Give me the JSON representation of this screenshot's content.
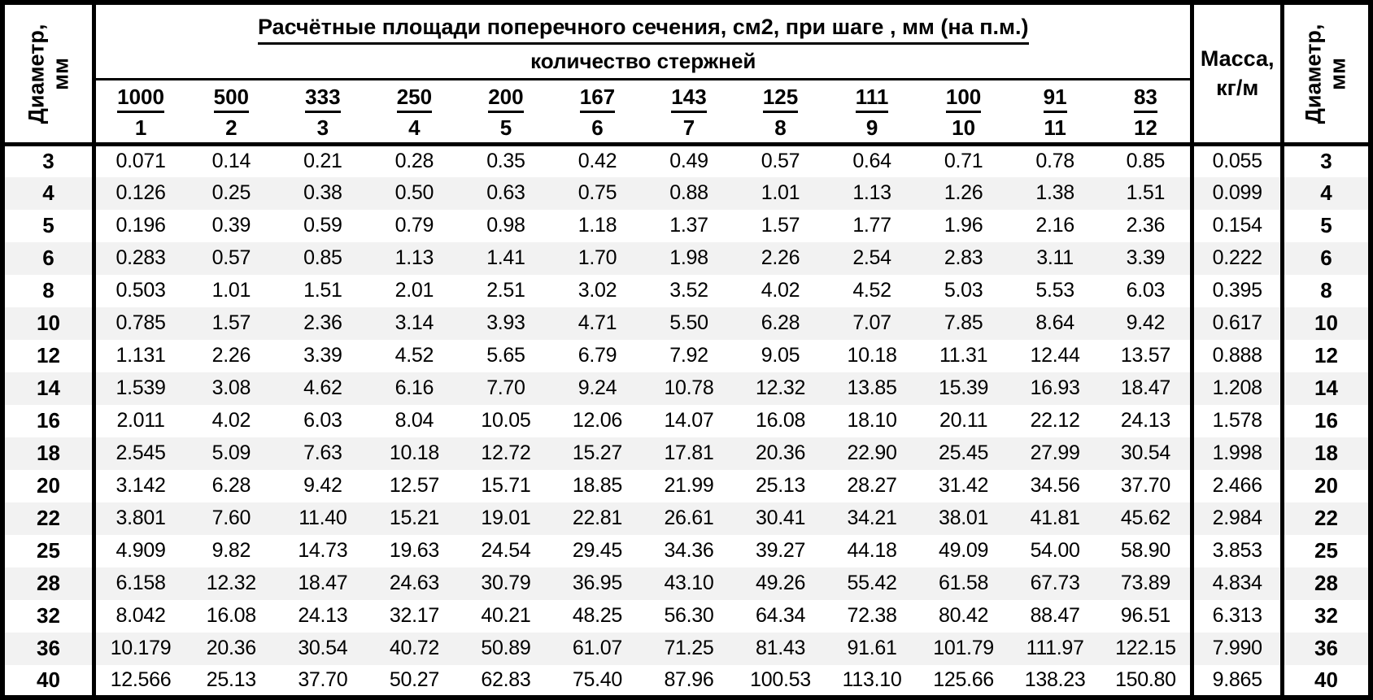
{
  "table": {
    "title": "Расчётные площади поперечного сечения, см2, при шаге , мм (на п.м.)",
    "subtitle": "количество стержней",
    "diameter_header": {
      "line1": "Диаметр,",
      "line2": "мм"
    },
    "mass_header": {
      "line1": "Масса,",
      "line2": "кг/м"
    },
    "spacing_values": [
      "1000",
      "500",
      "333",
      "250",
      "200",
      "167",
      "143",
      "125",
      "111",
      "100",
      "91",
      "83"
    ],
    "bar_counts": [
      "1",
      "2",
      "3",
      "4",
      "5",
      "6",
      "7",
      "8",
      "9",
      "10",
      "11",
      "12"
    ],
    "rows": [
      {
        "diameter": "3",
        "areas": [
          "0.071",
          "0.14",
          "0.21",
          "0.28",
          "0.35",
          "0.42",
          "0.49",
          "0.57",
          "0.64",
          "0.71",
          "0.78",
          "0.85"
        ],
        "mass": "0.055"
      },
      {
        "diameter": "4",
        "areas": [
          "0.126",
          "0.25",
          "0.38",
          "0.50",
          "0.63",
          "0.75",
          "0.88",
          "1.01",
          "1.13",
          "1.26",
          "1.38",
          "1.51"
        ],
        "mass": "0.099"
      },
      {
        "diameter": "5",
        "areas": [
          "0.196",
          "0.39",
          "0.59",
          "0.79",
          "0.98",
          "1.18",
          "1.37",
          "1.57",
          "1.77",
          "1.96",
          "2.16",
          "2.36"
        ],
        "mass": "0.154"
      },
      {
        "diameter": "6",
        "areas": [
          "0.283",
          "0.57",
          "0.85",
          "1.13",
          "1.41",
          "1.70",
          "1.98",
          "2.26",
          "2.54",
          "2.83",
          "3.11",
          "3.39"
        ],
        "mass": "0.222"
      },
      {
        "diameter": "8",
        "areas": [
          "0.503",
          "1.01",
          "1.51",
          "2.01",
          "2.51",
          "3.02",
          "3.52",
          "4.02",
          "4.52",
          "5.03",
          "5.53",
          "6.03"
        ],
        "mass": "0.395"
      },
      {
        "diameter": "10",
        "areas": [
          "0.785",
          "1.57",
          "2.36",
          "3.14",
          "3.93",
          "4.71",
          "5.50",
          "6.28",
          "7.07",
          "7.85",
          "8.64",
          "9.42"
        ],
        "mass": "0.617"
      },
      {
        "diameter": "12",
        "areas": [
          "1.131",
          "2.26",
          "3.39",
          "4.52",
          "5.65",
          "6.79",
          "7.92",
          "9.05",
          "10.18",
          "11.31",
          "12.44",
          "13.57"
        ],
        "mass": "0.888"
      },
      {
        "diameter": "14",
        "areas": [
          "1.539",
          "3.08",
          "4.62",
          "6.16",
          "7.70",
          "9.24",
          "10.78",
          "12.32",
          "13.85",
          "15.39",
          "16.93",
          "18.47"
        ],
        "mass": "1.208"
      },
      {
        "diameter": "16",
        "areas": [
          "2.011",
          "4.02",
          "6.03",
          "8.04",
          "10.05",
          "12.06",
          "14.07",
          "16.08",
          "18.10",
          "20.11",
          "22.12",
          "24.13"
        ],
        "mass": "1.578"
      },
      {
        "diameter": "18",
        "areas": [
          "2.545",
          "5.09",
          "7.63",
          "10.18",
          "12.72",
          "15.27",
          "17.81",
          "20.36",
          "22.90",
          "25.45",
          "27.99",
          "30.54"
        ],
        "mass": "1.998"
      },
      {
        "diameter": "20",
        "areas": [
          "3.142",
          "6.28",
          "9.42",
          "12.57",
          "15.71",
          "18.85",
          "21.99",
          "25.13",
          "28.27",
          "31.42",
          "34.56",
          "37.70"
        ],
        "mass": "2.466"
      },
      {
        "diameter": "22",
        "areas": [
          "3.801",
          "7.60",
          "11.40",
          "15.21",
          "19.01",
          "22.81",
          "26.61",
          "30.41",
          "34.21",
          "38.01",
          "41.81",
          "45.62"
        ],
        "mass": "2.984"
      },
      {
        "diameter": "25",
        "areas": [
          "4.909",
          "9.82",
          "14.73",
          "19.63",
          "24.54",
          "29.45",
          "34.36",
          "39.27",
          "44.18",
          "49.09",
          "54.00",
          "58.90"
        ],
        "mass": "3.853"
      },
      {
        "diameter": "28",
        "areas": [
          "6.158",
          "12.32",
          "18.47",
          "24.63",
          "30.79",
          "36.95",
          "43.10",
          "49.26",
          "55.42",
          "61.58",
          "67.73",
          "73.89"
        ],
        "mass": "4.834"
      },
      {
        "diameter": "32",
        "areas": [
          "8.042",
          "16.08",
          "24.13",
          "32.17",
          "40.21",
          "48.25",
          "56.30",
          "64.34",
          "72.38",
          "80.42",
          "88.47",
          "96.51"
        ],
        "mass": "6.313"
      },
      {
        "diameter": "36",
        "areas": [
          "10.179",
          "20.36",
          "30.54",
          "40.72",
          "50.89",
          "61.07",
          "71.25",
          "81.43",
          "91.61",
          "101.79",
          "111.97",
          "122.15"
        ],
        "mass": "7.990"
      },
      {
        "diameter": "40",
        "areas": [
          "12.566",
          "25.13",
          "37.70",
          "50.27",
          "62.83",
          "75.40",
          "87.96",
          "100.53",
          "113.10",
          "125.66",
          "138.23",
          "150.80"
        ],
        "mass": "9.865"
      }
    ]
  },
  "colors": {
    "stripe": "#f2f2f2",
    "border": "#000000",
    "text": "#000000",
    "background": "#ffffff"
  }
}
